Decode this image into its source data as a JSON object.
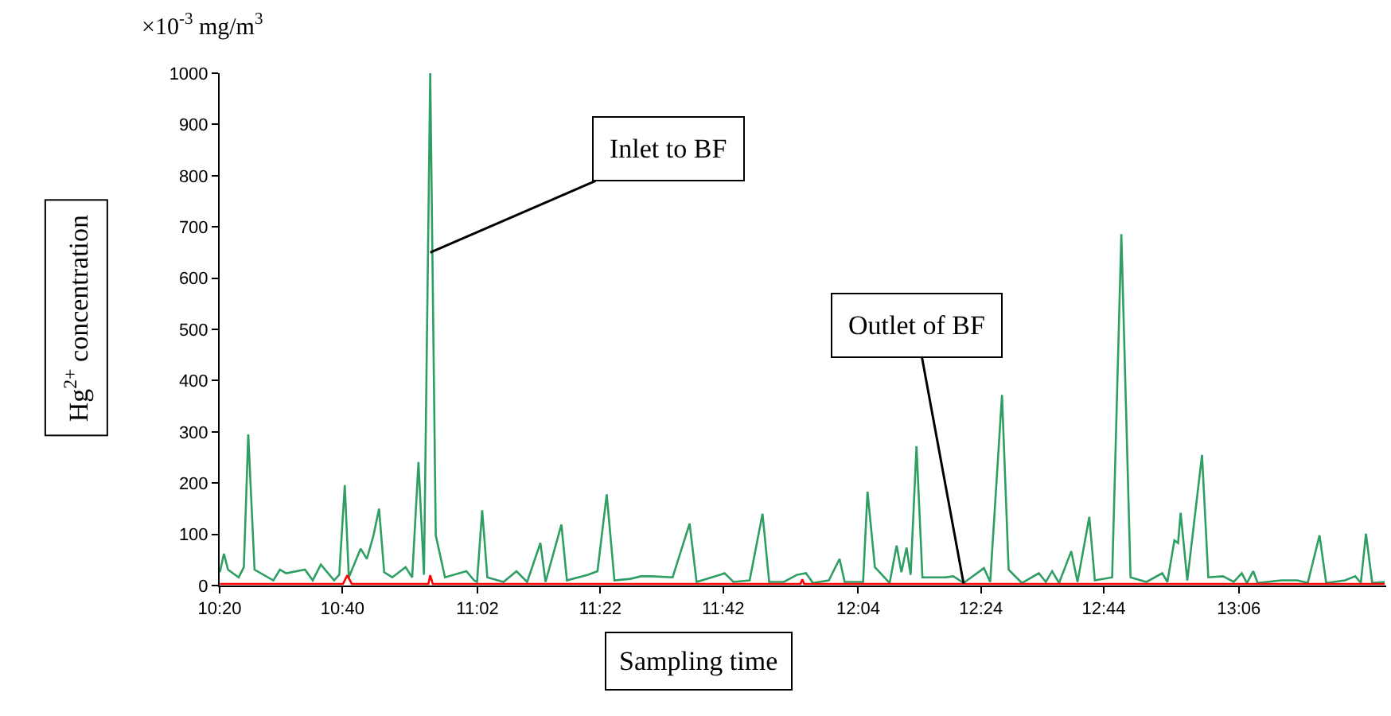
{
  "chart_data": {
    "type": "line",
    "xlabel": "Sampling time",
    "ylabel": "Hg$^{2+}$ concentration",
    "annotations": [
      "×10$^{-3}$ mg/m$^{3}$",
      {
        "text": "Inlet to BF",
        "x": 10.905,
        "y": 650
      },
      {
        "text": "Outlet of BF",
        "x": 12.353,
        "y": 3
      }
    ],
    "xlim": [
      10.3333,
      13.5
    ],
    "xticks": [
      {
        "value": 10.3333,
        "label": "10:20"
      },
      {
        "value": 10.6667,
        "label": "10:40"
      },
      {
        "value": 11.0333,
        "label": "11:02"
      },
      {
        "value": 11.3667,
        "label": "11:22"
      },
      {
        "value": 11.7,
        "label": "11:42"
      },
      {
        "value": 12.0667,
        "label": "12:04"
      },
      {
        "value": 12.4,
        "label": "12:24"
      },
      {
        "value": 12.7333,
        "label": "12:44"
      },
      {
        "value": 13.1,
        "label": "13:06"
      }
    ],
    "ylim": [
      0,
      1000
    ],
    "yticks": [
      0,
      100,
      200,
      300,
      400,
      500,
      600,
      700,
      800,
      900,
      1000
    ],
    "marker": "none",
    "line_style": "solid",
    "series": [
      {
        "color": "#2e9e63",
        "x": [
          10.334,
          10.345,
          10.356,
          10.385,
          10.399,
          10.411,
          10.428,
          10.479,
          10.497,
          10.514,
          10.565,
          10.586,
          10.608,
          10.644,
          10.658,
          10.673,
          10.684,
          10.716,
          10.733,
          10.751,
          10.766,
          10.78,
          10.802,
          10.838,
          10.856,
          10.873,
          10.888,
          10.905,
          10.92,
          10.945,
          11.003,
          11.024,
          11.032,
          11.046,
          11.06,
          11.104,
          11.139,
          11.168,
          11.204,
          11.218,
          11.261,
          11.276,
          11.333,
          11.359,
          11.384,
          11.405,
          11.448,
          11.477,
          11.506,
          11.563,
          11.609,
          11.628,
          11.692,
          11.704,
          11.728,
          11.772,
          11.807,
          11.825,
          11.865,
          11.901,
          11.925,
          11.944,
          11.987,
          12.016,
          12.03,
          12.08,
          12.092,
          12.112,
          12.152,
          12.171,
          12.184,
          12.198,
          12.209,
          12.225,
          12.241,
          12.303,
          12.325,
          12.353,
          12.408,
          12.425,
          12.457,
          12.475,
          12.511,
          12.557,
          12.576,
          12.593,
          12.612,
          12.645,
          12.662,
          12.694,
          12.709,
          12.756,
          12.781,
          12.806,
          12.849,
          12.892,
          12.906,
          12.925,
          12.935,
          12.942,
          12.96,
          13.0,
          13.017,
          13.057,
          13.086,
          13.108,
          13.122,
          13.139,
          13.151,
          13.215,
          13.259,
          13.287,
          13.319,
          13.337,
          13.388,
          13.416,
          13.431,
          13.445,
          13.462,
          13.496
        ],
        "values": [
          26,
          62,
          31,
          16,
          36,
          295,
          31,
          10,
          31,
          24,
          31,
          10,
          41,
          10,
          21,
          196,
          16,
          72,
          52,
          98,
          150,
          26,
          16,
          36,
          16,
          241,
          21,
          1000,
          98,
          16,
          28,
          10,
          7,
          147,
          16,
          7,
          28,
          7,
          83,
          7,
          119,
          10,
          21,
          28,
          178,
          10,
          13,
          18,
          18,
          16,
          121,
          7,
          21,
          24,
          7,
          10,
          140,
          7,
          7,
          21,
          24,
          5,
          10,
          52,
          7,
          7,
          183,
          36,
          5,
          78,
          26,
          74,
          21,
          272,
          16,
          16,
          18,
          5,
          34,
          7,
          372,
          31,
          5,
          24,
          7,
          28,
          5,
          67,
          7,
          134,
          10,
          16,
          686,
          16,
          7,
          24,
          7,
          88,
          83,
          142,
          10,
          255,
          16,
          18,
          7,
          24,
          5,
          28,
          5,
          10,
          10,
          5,
          98,
          5,
          10,
          18,
          5,
          101,
          5,
          7
        ]
      },
      {
        "color": "#ff0000",
        "x": [
          10.334,
          10.668,
          10.68,
          10.692,
          10.9,
          10.905,
          10.912,
          11.91,
          11.915,
          11.92,
          12.353,
          13.496
        ],
        "values": [
          3,
          3,
          20,
          3,
          3,
          20,
          3,
          3,
          12,
          3,
          3,
          3
        ]
      }
    ]
  }
}
